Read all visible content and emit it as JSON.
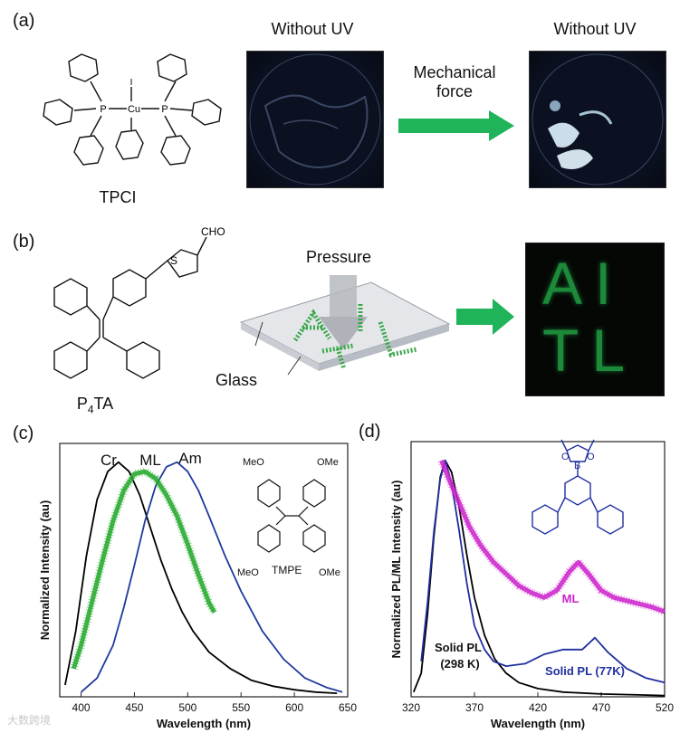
{
  "panels": {
    "a": {
      "label": "(a)",
      "molecule": "TPCI",
      "atoms": {
        "p1": "P",
        "p2": "P",
        "cu": "Cu",
        "i": "I"
      },
      "photo_left_title": "Without UV",
      "photo_right_title": "Without UV",
      "arrow_text_line1": "Mechanical",
      "arrow_text_line2": "force",
      "arrow_color": "#1fb35a"
    },
    "b": {
      "label": "(b)",
      "molecule_main": "P",
      "molecule_sub": "4",
      "molecule_tail": "TA",
      "atoms": {
        "s": "S",
        "cho": "CHO"
      },
      "pressure_text": "Pressure",
      "glass_text": "Glass",
      "photo_text_line1": "AI",
      "photo_text_line2": "TL",
      "arrow_color": "#1fb35a"
    },
    "c": {
      "label": "(c)"
    },
    "d": {
      "label": "(d)"
    }
  },
  "watermark": "大数跨境",
  "chart_data": [
    {
      "type": "line",
      "panel": "c",
      "xlabel": "Wavelength (nm)",
      "ylabel": "Normalized Intensity (au)",
      "xlim": [
        380,
        650
      ],
      "ylim": [
        0,
        1.08
      ],
      "xticks": [
        400,
        450,
        500,
        550,
        600,
        650
      ],
      "annotations": [
        "Cr",
        "ML",
        "Am"
      ],
      "molecule": "TMPE",
      "molecule_groups": [
        "MeO",
        "OMe",
        "MeO",
        "OMe"
      ],
      "series": [
        {
          "label": "Cr",
          "color": "#000000",
          "x": [
            385,
            395,
            405,
            415,
            425,
            435,
            445,
            455,
            465,
            475,
            485,
            495,
            505,
            520,
            540,
            560,
            580,
            600,
            620,
            640
          ],
          "y": [
            0.05,
            0.28,
            0.6,
            0.84,
            0.96,
            1.0,
            0.96,
            0.86,
            0.72,
            0.58,
            0.46,
            0.36,
            0.28,
            0.19,
            0.12,
            0.07,
            0.045,
            0.03,
            0.02,
            0.015
          ]
        },
        {
          "label": "Am",
          "color": "#1f3a9e",
          "x": [
            400,
            415,
            430,
            440,
            450,
            460,
            470,
            480,
            490,
            500,
            510,
            520,
            535,
            550,
            570,
            590,
            610,
            630,
            645
          ],
          "y": [
            0.02,
            0.08,
            0.22,
            0.38,
            0.56,
            0.75,
            0.9,
            0.98,
            1.0,
            0.96,
            0.88,
            0.77,
            0.6,
            0.45,
            0.28,
            0.16,
            0.08,
            0.04,
            0.02
          ]
        },
        {
          "label": "ML",
          "color": "#22a82a",
          "x": [
            393,
            400,
            410,
            420,
            430,
            440,
            450,
            460,
            470,
            480,
            490,
            500,
            510,
            520,
            525
          ],
          "y": [
            0.12,
            0.22,
            0.4,
            0.58,
            0.75,
            0.88,
            0.95,
            0.96,
            0.93,
            0.86,
            0.77,
            0.65,
            0.52,
            0.4,
            0.36
          ]
        }
      ]
    },
    {
      "type": "line",
      "panel": "d",
      "xlabel": "Wavelength (nm)",
      "ylabel": "Normalized PL/ML Intensity (au)",
      "xlim": [
        320,
        520
      ],
      "ylim": [
        0,
        1.08
      ],
      "xticks": [
        320,
        370,
        420,
        470,
        520
      ],
      "annotations": [
        "ML",
        "Solid PL",
        "(298 K)",
        "Solid PL (77K)"
      ],
      "molecule_atoms": [
        "O",
        "B",
        "O"
      ],
      "series": [
        {
          "label": "Solid PL (298 K)",
          "color": "#000000",
          "x": [
            322,
            328,
            333,
            338,
            343,
            347,
            352,
            358,
            364,
            370,
            378,
            386,
            395,
            405,
            420,
            440,
            470,
            500,
            520
          ],
          "y": [
            0.02,
            0.1,
            0.35,
            0.68,
            0.93,
            1.0,
            0.95,
            0.8,
            0.6,
            0.42,
            0.26,
            0.16,
            0.1,
            0.06,
            0.035,
            0.02,
            0.012,
            0.008,
            0.005
          ]
        },
        {
          "label": "Solid PL (77K)",
          "color": "#1f2fa0",
          "x": [
            328,
            333,
            338,
            343,
            347,
            352,
            358,
            364,
            370,
            378,
            385,
            395,
            410,
            425,
            440,
            455,
            465,
            475,
            490,
            505,
            520
          ],
          "y": [
            0.15,
            0.4,
            0.7,
            0.92,
            1.0,
            0.9,
            0.7,
            0.48,
            0.3,
            0.2,
            0.15,
            0.13,
            0.14,
            0.18,
            0.2,
            0.2,
            0.25,
            0.19,
            0.12,
            0.08,
            0.06
          ]
        },
        {
          "label": "ML",
          "color": "#cc22cc",
          "x": [
            344,
            350,
            358,
            366,
            375,
            385,
            395,
            405,
            415,
            425,
            435,
            445,
            452,
            460,
            470,
            480,
            495,
            510,
            520
          ],
          "y": [
            1.0,
            0.92,
            0.82,
            0.72,
            0.64,
            0.57,
            0.52,
            0.47,
            0.44,
            0.42,
            0.45,
            0.53,
            0.57,
            0.52,
            0.45,
            0.42,
            0.4,
            0.38,
            0.36
          ]
        }
      ]
    }
  ]
}
